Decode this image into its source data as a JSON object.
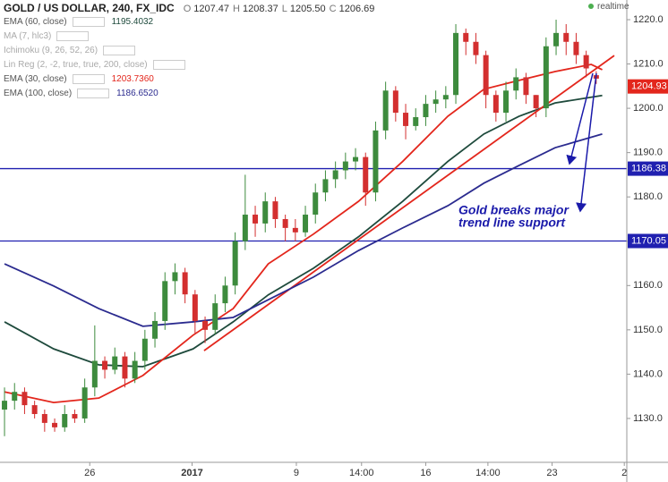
{
  "chart_data": {
    "type": "candlestick",
    "title": "GOLD / US DOLLAR, 240, FX_IDC",
    "ohlc_header": [
      {
        "label": "O",
        "value": "1207.47"
      },
      {
        "label": "H",
        "value": "1208.37"
      },
      {
        "label": "L",
        "value": "1205.50"
      },
      {
        "label": "C",
        "value": "1206.69"
      }
    ],
    "status": "realtime",
    "up_color": "#3d8b3d",
    "down_color": "#d32f2f",
    "open": [
      1132,
      1134,
      1136,
      1133,
      1131,
      1129,
      1128,
      1131,
      1130,
      1137,
      1143,
      1141,
      1144,
      1139,
      1143,
      1148,
      1152,
      1161,
      1163,
      1158,
      1152,
      1150,
      1156,
      1160,
      1170,
      1176,
      1174,
      1179,
      1175,
      1173,
      1172,
      1176,
      1181,
      1184,
      1186,
      1188,
      1189,
      1181,
      1195,
      1204,
      1199,
      1196,
      1198,
      1201,
      1202,
      1203,
      1217,
      1215,
      1212,
      1203,
      1199,
      1204,
      1207,
      1203,
      1200,
      1214,
      1217,
      1215,
      1212,
      1207.47
    ],
    "high": [
      1137,
      1138,
      1137,
      1134,
      1132,
      1130,
      1133,
      1132,
      1139,
      1151,
      1144,
      1146,
      1145,
      1145,
      1150,
      1154,
      1163,
      1165,
      1164,
      1159,
      1153,
      1158,
      1162,
      1172,
      1185,
      1178,
      1181,
      1180,
      1176,
      1175,
      1178,
      1183,
      1186,
      1188,
      1190,
      1191,
      1190,
      1197,
      1206,
      1205,
      1201,
      1200,
      1203,
      1204,
      1205,
      1219,
      1218,
      1217,
      1213,
      1204,
      1206,
      1209,
      1208,
      1203,
      1216,
      1220,
      1219,
      1217,
      1213,
      1208.37
    ],
    "low": [
      1126,
      1132,
      1131,
      1130,
      1127,
      1127,
      1127,
      1129,
      1129,
      1135,
      1139,
      1140,
      1137,
      1138,
      1141,
      1146,
      1150,
      1158,
      1156,
      1149,
      1147,
      1149,
      1154,
      1158,
      1168,
      1171,
      1172,
      1173,
      1170,
      1170,
      1171,
      1174,
      1179,
      1182,
      1184,
      1186,
      1178,
      1179,
      1193,
      1197,
      1193,
      1195,
      1196,
      1199,
      1200,
      1201,
      1212,
      1210,
      1200,
      1197,
      1197,
      1202,
      1201,
      1198,
      1198,
      1212,
      1212,
      1210,
      1207,
      1205.5
    ],
    "close": [
      1134,
      1136,
      1133,
      1131,
      1129,
      1128,
      1131,
      1130,
      1137,
      1143,
      1141,
      1144,
      1139,
      1143,
      1148,
      1152,
      1161,
      1163,
      1158,
      1152,
      1150,
      1156,
      1160,
      1170,
      1176,
      1174,
      1179,
      1175,
      1173,
      1172,
      1176,
      1181,
      1184,
      1186,
      1188,
      1189,
      1181,
      1195,
      1204,
      1199,
      1196,
      1198,
      1201,
      1202,
      1203,
      1217,
      1215,
      1212,
      1203,
      1199,
      1204,
      1207,
      1203,
      1200,
      1214,
      1217,
      1215,
      1212,
      1209,
      1206.69
    ],
    "indicators": [
      {
        "name": "EMA (60, close)",
        "value": "1195.4032",
        "color": "#1e4a3c",
        "x": [
          0,
          4.9,
          9.4,
          13.8,
          18.8,
          22.8,
          26.3,
          30.8,
          35.3,
          39.7,
          44.2,
          47.8,
          51.3,
          54.9,
          59.6
        ],
        "values": [
          1151.8,
          1145.7,
          1142.1,
          1141.7,
          1145.7,
          1151.8,
          1157.9,
          1163.9,
          1171,
          1179,
          1188,
          1194.2,
          1198.2,
          1201.2,
          1202.9
        ]
      },
      {
        "name": "MA (7, hlc3)",
        "hidden": true
      },
      {
        "name": "Ichimoku (9, 26, 52, 26)",
        "hidden": true
      },
      {
        "name": "Lin Reg (2, -2, true, true, 200, close)",
        "hidden": true,
        "color": "#e3261c",
        "x": [
          19.9,
          60.8
        ],
        "values": [
          1145.3,
          1211.9
        ]
      },
      {
        "name": "EMA (30, close)",
        "value": "1203.7360",
        "color": "#e3261c",
        "x": [
          0,
          4.9,
          9.4,
          13.8,
          18.8,
          22.8,
          26.3,
          30.8,
          35.3,
          39.7,
          44.2,
          47.8,
          51.3,
          54.9,
          58.5,
          59.6
        ],
        "values": [
          1136,
          1133.6,
          1134.6,
          1139.7,
          1148.8,
          1154.8,
          1164.9,
          1171.6,
          1179,
          1188,
          1198.2,
          1204.3,
          1206.3,
          1208.3,
          1209.9,
          1208.7
        ]
      },
      {
        "name": "EMA (100, close)",
        "value": "1186.6520",
        "color": "#2b2b8f",
        "x": [
          0,
          4.9,
          9.4,
          13.8,
          18.8,
          22.8,
          26.3,
          30.8,
          35.3,
          39.7,
          44.2,
          47.8,
          51.3,
          54.9,
          59.6
        ],
        "values": [
          1164.9,
          1159.9,
          1154.8,
          1150.8,
          1151.8,
          1152.8,
          1156.8,
          1161.9,
          1167.9,
          1173,
          1178,
          1183.1,
          1187.1,
          1191.1,
          1194.2
        ]
      }
    ],
    "levels": [
      {
        "value": 1186.38,
        "color": "#2020b0"
      },
      {
        "value": 1170.05,
        "color": "#2020b0"
      }
    ],
    "last_price": {
      "value": 1204.93,
      "color": "#e3261c"
    },
    "annotation": [
      "Gold breaks major",
      "trend line support"
    ],
    "xlim": [
      -0.45,
      62.05
    ],
    "xticks": [
      {
        "value": 8.5,
        "label": "26"
      },
      {
        "value": 18.7,
        "label": "2017"
      },
      {
        "value": 29.1,
        "label": "9"
      },
      {
        "value": 35.6,
        "label": "14:00"
      },
      {
        "value": 42,
        "label": "16"
      },
      {
        "value": 48.2,
        "label": "14:00"
      },
      {
        "value": 54.6,
        "label": "23"
      },
      {
        "value": 61.8,
        "label": "2"
      }
    ],
    "ylim": [
      1120.1,
      1224.44
    ],
    "yticks": [
      {
        "value": 1130,
        "label": "1130.0"
      },
      {
        "value": 1140,
        "label": "1140.0"
      },
      {
        "value": 1150,
        "label": "1150.0"
      },
      {
        "value": 1160,
        "label": "1160.0"
      },
      {
        "value": 1170,
        "label": "1170.0"
      },
      {
        "value": 1180,
        "label": "1180.0"
      },
      {
        "value": 1190,
        "label": "1190.0"
      },
      {
        "value": 1200,
        "label": "1200.0"
      },
      {
        "value": 1210,
        "label": "1210.0"
      },
      {
        "value": 1220,
        "label": "1220.0"
      }
    ]
  }
}
